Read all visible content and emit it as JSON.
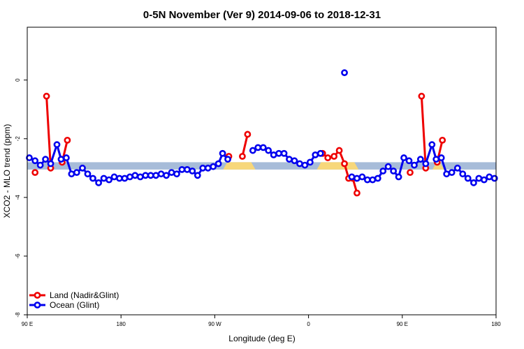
{
  "chart_data": {
    "type": "line",
    "title": "0-5N November (Ver 9)   2014-09-06 to 2018-12-31",
    "xlabel": "Longitude (deg E)",
    "ylabel": "XCO2 - MLO trend (ppm)",
    "xlim": [
      90,
      540
    ],
    "ylim": [
      -8,
      1.8
    ],
    "x_ticks": [
      {
        "value": 90,
        "label": "90 E"
      },
      {
        "value": 180,
        "label": "180"
      },
      {
        "value": 270,
        "label": "90 W"
      },
      {
        "value": 360,
        "label": "0"
      },
      {
        "value": 450,
        "label": "90 E"
      },
      {
        "value": 540,
        "label": "180"
      }
    ],
    "y_ticks": [
      {
        "value": 0,
        "label": "0"
      },
      {
        "value": -2,
        "label": "-2"
      },
      {
        "value": -4,
        "label": "-4"
      },
      {
        "value": -6,
        "label": "-6"
      },
      {
        "value": -8,
        "label": "-8"
      }
    ],
    "grid": false,
    "legend_position": "bottom-left",
    "band": {
      "y_min": -3.05,
      "y_max": -2.8,
      "color": "#a7bcd9"
    },
    "highlight_segments": [
      {
        "x_start": 280,
        "x_end": 307,
        "color": "#f7d77a"
      },
      {
        "x_start": 370,
        "x_end": 406,
        "color": "#f7d77a"
      },
      {
        "x_start": 481,
        "x_end": 488,
        "color": "#f7d77a"
      }
    ],
    "series": [
      {
        "name": "Land (Nadir&Glint)",
        "color": "#ee0000",
        "segments": [
          [
            [
              97.5,
              -3.15
            ]
          ],
          [
            [
              108.5,
              -0.55
            ],
            [
              112.5,
              -3.0
            ]
          ],
          [
            [
              123.5,
              -2.8
            ],
            [
              128.5,
              -2.05
            ]
          ],
          [
            [
              283.5,
              -2.6
            ]
          ],
          [
            [
              296.5,
              -2.6
            ],
            [
              301.5,
              -1.85
            ]
          ],
          [
            [
              373.5,
              -2.5
            ],
            [
              378.5,
              -2.65
            ],
            [
              384.5,
              -2.6
            ],
            [
              389.5,
              -2.4
            ],
            [
              394.5,
              -2.85
            ],
            [
              398.5,
              -3.35
            ],
            [
              402.5,
              -3.35
            ],
            [
              406.5,
              -3.85
            ]
          ],
          [
            [
              457.5,
              -3.15
            ]
          ],
          [
            [
              468.5,
              -0.55
            ],
            [
              472.5,
              -3.0
            ]
          ],
          [
            [
              483.5,
              -2.8
            ],
            [
              488.5,
              -2.05
            ]
          ]
        ]
      },
      {
        "name": "Ocean (Glint)",
        "color": "#0000ee",
        "segments": [
          [
            [
              92,
              -2.65
            ],
            [
              97.5,
              -2.75
            ],
            [
              102.5,
              -2.9
            ],
            [
              107.5,
              -2.7
            ],
            [
              112.5,
              -2.85
            ],
            [
              118.5,
              -2.2
            ],
            [
              122.5,
              -2.7
            ],
            [
              127.5,
              -2.65
            ],
            [
              132.5,
              -3.2
            ],
            [
              137.5,
              -3.15
            ],
            [
              143,
              -3.0
            ],
            [
              148,
              -3.2
            ],
            [
              153,
              -3.35
            ],
            [
              158.5,
              -3.5
            ],
            [
              163.5,
              -3.35
            ],
            [
              168.5,
              -3.4
            ],
            [
              173.5,
              -3.3
            ],
            [
              178.5,
              -3.35
            ],
            [
              183.5,
              -3.35
            ],
            [
              188.5,
              -3.3
            ],
            [
              193.5,
              -3.25
            ],
            [
              198.5,
              -3.3
            ],
            [
              203.5,
              -3.25
            ],
            [
              208.5,
              -3.25
            ],
            [
              213.5,
              -3.25
            ],
            [
              218.5,
              -3.2
            ],
            [
              223.5,
              -3.25
            ],
            [
              228.5,
              -3.15
            ],
            [
              233.5,
              -3.2
            ],
            [
              238.5,
              -3.05
            ],
            [
              243.5,
              -3.05
            ],
            [
              248.5,
              -3.1
            ],
            [
              253.5,
              -3.25
            ],
            [
              258.5,
              -3.0
            ],
            [
              263.5,
              -3.0
            ],
            [
              268.5,
              -2.95
            ],
            [
              273.5,
              -2.85
            ],
            [
              277.5,
              -2.5
            ],
            [
              282.5,
              -2.7
            ]
          ],
          [
            [
              306.5,
              -2.4
            ],
            [
              311.5,
              -2.3
            ],
            [
              316.5,
              -2.3
            ],
            [
              321.5,
              -2.4
            ],
            [
              326.5,
              -2.55
            ],
            [
              331.5,
              -2.5
            ],
            [
              336.5,
              -2.5
            ],
            [
              341.5,
              -2.7
            ],
            [
              346.5,
              -2.75
            ],
            [
              351.5,
              -2.85
            ],
            [
              356.5,
              -2.9
            ],
            [
              361.5,
              -2.8
            ],
            [
              366.5,
              -2.55
            ],
            [
              371.5,
              -2.5
            ]
          ],
          [
            [
              394.5,
              0.25
            ]
          ],
          [
            [
              401.5,
              -3.3
            ],
            [
              406.5,
              -3.35
            ],
            [
              411.5,
              -3.3
            ],
            [
              416.5,
              -3.4
            ],
            [
              421.5,
              -3.4
            ],
            [
              426.5,
              -3.35
            ],
            [
              431.5,
              -3.1
            ],
            [
              436.5,
              -2.95
            ],
            [
              441.5,
              -3.1
            ],
            [
              446.5,
              -3.3
            ],
            [
              451.5,
              -2.65
            ],
            [
              456.5,
              -2.75
            ],
            [
              461.5,
              -2.9
            ],
            [
              467.5,
              -2.7
            ],
            [
              472.5,
              -2.85
            ],
            [
              478.5,
              -2.2
            ],
            [
              482.5,
              -2.7
            ],
            [
              487.5,
              -2.65
            ],
            [
              492.5,
              -3.2
            ],
            [
              497.5,
              -3.15
            ],
            [
              503,
              -3.0
            ],
            [
              508,
              -3.2
            ],
            [
              513,
              -3.35
            ],
            [
              518.5,
              -3.5
            ],
            [
              523.5,
              -3.35
            ],
            [
              528.5,
              -3.4
            ],
            [
              533.5,
              -3.3
            ],
            [
              538.5,
              -3.35
            ]
          ]
        ]
      }
    ]
  }
}
